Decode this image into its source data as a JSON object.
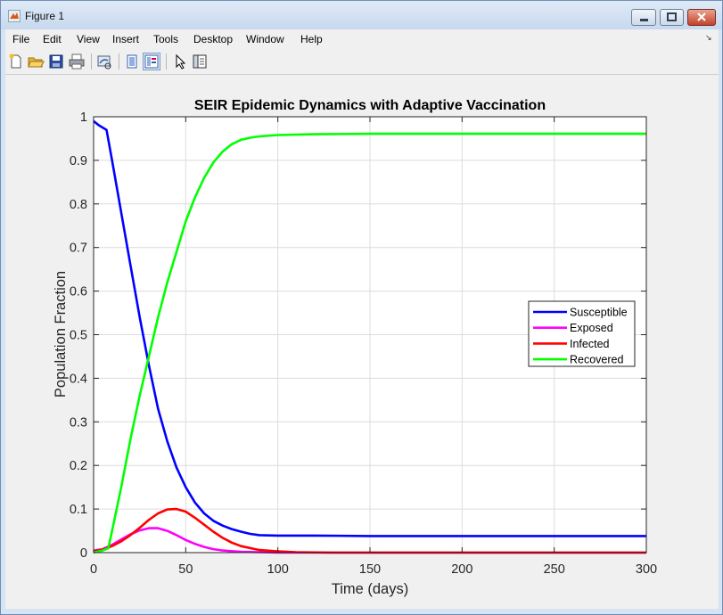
{
  "window": {
    "title": "Figure 1"
  },
  "menu": {
    "items": [
      "File",
      "Edit",
      "View",
      "Insert",
      "Tools",
      "Desktop",
      "Window",
      "Help"
    ]
  },
  "toolbar": {
    "icons": [
      "new-figure-icon",
      "open-file-icon",
      "save-icon",
      "print-icon",
      "link-plot-icon",
      "hide-plot-tools-icon",
      "show-plot-tools-icon",
      "edit-plot-icon",
      "property-editor-icon"
    ]
  },
  "colors": {
    "susceptible": "#0000ff",
    "exposed": "#ff00ff",
    "infected": "#ff0000",
    "recovered": "#00ff00"
  },
  "chart_data": {
    "type": "line",
    "title": "SEIR Epidemic Dynamics with Adaptive Vaccination",
    "xlabel": "Time (days)",
    "ylabel": "Population Fraction",
    "xlim": [
      0,
      300
    ],
    "ylim": [
      0,
      1
    ],
    "xticks": [
      0,
      50,
      100,
      150,
      200,
      250,
      300
    ],
    "yticks": [
      0,
      0.1,
      0.2,
      0.3,
      0.4,
      0.5,
      0.6,
      0.7,
      0.8,
      0.9,
      1
    ],
    "grid": true,
    "legend_position": "right",
    "series": [
      {
        "name": "Susceptible",
        "color": "#0000ff",
        "points": [
          [
            0,
            0.99
          ],
          [
            3,
            0.98
          ],
          [
            7,
            0.97
          ],
          [
            10,
            0.9
          ],
          [
            15,
            0.78
          ],
          [
            20,
            0.66
          ],
          [
            25,
            0.54
          ],
          [
            30,
            0.43
          ],
          [
            35,
            0.33
          ],
          [
            40,
            0.255
          ],
          [
            45,
            0.195
          ],
          [
            50,
            0.15
          ],
          [
            55,
            0.115
          ],
          [
            60,
            0.09
          ],
          [
            65,
            0.073
          ],
          [
            70,
            0.062
          ],
          [
            75,
            0.054
          ],
          [
            80,
            0.048
          ],
          [
            85,
            0.043
          ],
          [
            90,
            0.04
          ],
          [
            100,
            0.039
          ],
          [
            120,
            0.039
          ],
          [
            150,
            0.038
          ],
          [
            200,
            0.038
          ],
          [
            250,
            0.038
          ],
          [
            300,
            0.038
          ]
        ]
      },
      {
        "name": "Exposed",
        "color": "#ff00ff",
        "points": [
          [
            0,
            0.005
          ],
          [
            5,
            0.008
          ],
          [
            10,
            0.018
          ],
          [
            15,
            0.03
          ],
          [
            20,
            0.042
          ],
          [
            25,
            0.051
          ],
          [
            30,
            0.056
          ],
          [
            35,
            0.056
          ],
          [
            40,
            0.05
          ],
          [
            45,
            0.04
          ],
          [
            50,
            0.029
          ],
          [
            55,
            0.02
          ],
          [
            60,
            0.013
          ],
          [
            65,
            0.008
          ],
          [
            70,
            0.005
          ],
          [
            80,
            0.002
          ],
          [
            90,
            0.001
          ],
          [
            100,
            0.0
          ],
          [
            150,
            0.0
          ],
          [
            200,
            0.0
          ],
          [
            250,
            0.0
          ],
          [
            300,
            0.0
          ]
        ]
      },
      {
        "name": "Infected",
        "color": "#ff0000",
        "points": [
          [
            0,
            0.003
          ],
          [
            5,
            0.007
          ],
          [
            10,
            0.015
          ],
          [
            15,
            0.026
          ],
          [
            20,
            0.04
          ],
          [
            25,
            0.057
          ],
          [
            30,
            0.075
          ],
          [
            35,
            0.09
          ],
          [
            40,
            0.099
          ],
          [
            45,
            0.1
          ],
          [
            50,
            0.094
          ],
          [
            55,
            0.08
          ],
          [
            60,
            0.064
          ],
          [
            65,
            0.048
          ],
          [
            70,
            0.034
          ],
          [
            75,
            0.023
          ],
          [
            80,
            0.015
          ],
          [
            90,
            0.006
          ],
          [
            100,
            0.003
          ],
          [
            110,
            0.001
          ],
          [
            130,
            0.0
          ],
          [
            150,
            0.0
          ],
          [
            200,
            0.0
          ],
          [
            250,
            0.0
          ],
          [
            300,
            0.0
          ]
        ]
      },
      {
        "name": "Recovered",
        "color": "#00ff00",
        "points": [
          [
            0,
            0.0
          ],
          [
            5,
            0.005
          ],
          [
            8,
            0.01
          ],
          [
            10,
            0.05
          ],
          [
            15,
            0.15
          ],
          [
            20,
            0.26
          ],
          [
            25,
            0.36
          ],
          [
            30,
            0.45
          ],
          [
            35,
            0.54
          ],
          [
            40,
            0.62
          ],
          [
            45,
            0.69
          ],
          [
            50,
            0.76
          ],
          [
            55,
            0.815
          ],
          [
            60,
            0.86
          ],
          [
            65,
            0.895
          ],
          [
            70,
            0.92
          ],
          [
            75,
            0.937
          ],
          [
            80,
            0.947
          ],
          [
            85,
            0.952
          ],
          [
            90,
            0.955
          ],
          [
            100,
            0.958
          ],
          [
            120,
            0.96
          ],
          [
            150,
            0.961
          ],
          [
            200,
            0.961
          ],
          [
            250,
            0.961
          ],
          [
            300,
            0.961
          ]
        ]
      }
    ]
  }
}
